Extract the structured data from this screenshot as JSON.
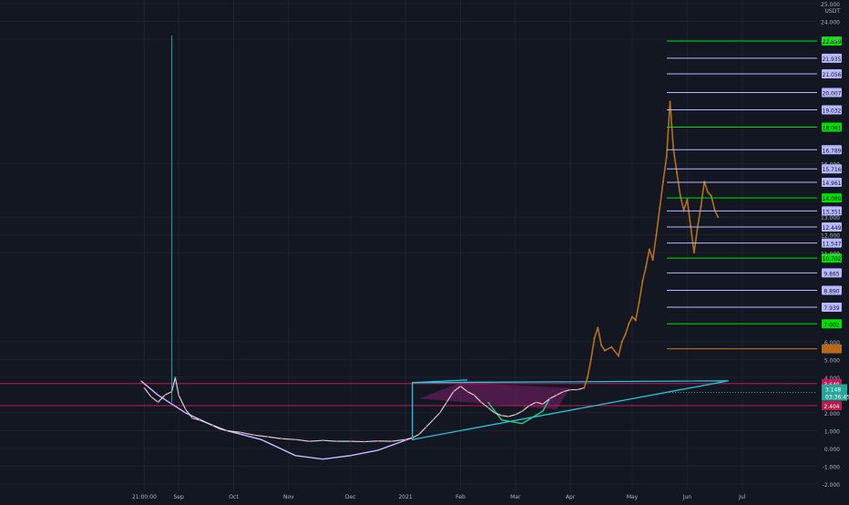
{
  "chart_data": {
    "type": "line",
    "title": "",
    "xlabel": "",
    "ylabel": "",
    "currency_label": "USDT",
    "ylim": [
      -2.0,
      25.0
    ],
    "colors": {
      "background": "#131722",
      "grid": "#1e222d",
      "axis_text": "#b2b5be",
      "price_history": "#e0e3eb",
      "projection": "#c77a1d",
      "cup_curve": "#c9b7ff",
      "triangle": "#26c6da",
      "fib_line": "#b7b8ff",
      "fib_green": "#00e000",
      "pink_line": "#c2185b",
      "pattern_fill": "#7b1f6a",
      "current_price_tag": "#26a69a",
      "dark_red_tag": "#b71c4a",
      "orange_tag": "#b86a1b"
    },
    "y_ticks": [
      {
        "v": 25.0,
        "label": "25.000"
      },
      {
        "v": 24.0,
        "label": "24.000"
      },
      {
        "v": 23.0,
        "label": "23.000"
      },
      {
        "v": 16.0,
        "label": "16.000"
      },
      {
        "v": 13.0,
        "label": "13.000"
      },
      {
        "v": 12.0,
        "label": "12.000"
      },
      {
        "v": 11.0,
        "label": "11.000"
      },
      {
        "v": 6.0,
        "label": "6.000"
      },
      {
        "v": 5.0,
        "label": "5.000"
      },
      {
        "v": 4.0,
        "label": "4.000"
      },
      {
        "v": 2.0,
        "label": "2.000"
      },
      {
        "v": 1.0,
        "label": "1.000"
      },
      {
        "v": 0.0,
        "label": "0.000"
      },
      {
        "v": -1.0,
        "label": "-1.000"
      },
      {
        "v": -2.0,
        "label": "-2.000"
      }
    ],
    "x_ticks": [
      {
        "x": 2020.62,
        "label": "21:00:00"
      },
      {
        "x": 2020.67,
        "label": "Sep"
      },
      {
        "x": 2020.75,
        "label": "Oct"
      },
      {
        "x": 2020.83,
        "label": "Nov"
      },
      {
        "x": 2020.92,
        "label": "Dec"
      },
      {
        "x": 2021.0,
        "label": "2021"
      },
      {
        "x": 2021.08,
        "label": "Feb"
      },
      {
        "x": 2021.16,
        "label": "Mar"
      },
      {
        "x": 2021.24,
        "label": "Apr"
      },
      {
        "x": 2021.33,
        "label": "May"
      },
      {
        "x": 2021.41,
        "label": "Jun"
      },
      {
        "x": 2021.49,
        "label": "Jul"
      }
    ],
    "x_range": [
      2020.41,
      2021.55
    ],
    "levels": [
      {
        "v": 22.899,
        "label": "22.899",
        "kind": "green"
      },
      {
        "v": 21.935,
        "label": "21.935",
        "kind": "fib"
      },
      {
        "v": 21.056,
        "label": "21.056",
        "kind": "fib"
      },
      {
        "v": 20.007,
        "label": "20.007",
        "kind": "fib"
      },
      {
        "v": 19.032,
        "label": "19.032",
        "kind": "fib"
      },
      {
        "v": 18.061,
        "label": "18.061",
        "kind": "green"
      },
      {
        "v": 16.789,
        "label": "16.789",
        "kind": "fib"
      },
      {
        "v": 15.716,
        "label": "15.716",
        "kind": "fib"
      },
      {
        "v": 14.961,
        "label": "14.961",
        "kind": "fib"
      },
      {
        "v": 14.08,
        "label": "14.080",
        "kind": "green"
      },
      {
        "v": 13.351,
        "label": "13.351",
        "kind": "fib"
      },
      {
        "v": 12.449,
        "label": "12.449",
        "kind": "fib"
      },
      {
        "v": 11.547,
        "label": "11.547",
        "kind": "fib"
      },
      {
        "v": 10.702,
        "label": "10.702",
        "kind": "green"
      },
      {
        "v": 9.865,
        "label": "9.865",
        "kind": "fib"
      },
      {
        "v": 8.89,
        "label": "8.890",
        "kind": "fib"
      },
      {
        "v": 7.939,
        "label": "7.939",
        "kind": "fib"
      },
      {
        "v": 7.002,
        "label": "7.002",
        "kind": "green"
      },
      {
        "v": 5.6,
        "label": "",
        "kind": "orange"
      }
    ],
    "pink_levels": [
      3.648,
      2.404
    ],
    "tags": {
      "upper_pink": "3.648",
      "lower_red": "2.404",
      "current_price": "3.148",
      "countdown": "03:36:45"
    },
    "series": [
      {
        "kind": "history",
        "points": [
          [
            2020.62,
            3.4
          ],
          [
            2020.63,
            2.9
          ],
          [
            2020.64,
            2.6
          ],
          [
            2020.65,
            3.0
          ],
          [
            2020.66,
            3.2
          ],
          [
            2020.665,
            4.0
          ],
          [
            2020.67,
            3.0
          ],
          [
            2020.68,
            2.2
          ],
          [
            2020.69,
            1.7
          ],
          [
            2020.7,
            1.6
          ],
          [
            2020.72,
            1.3
          ],
          [
            2020.74,
            1.0
          ],
          [
            2020.76,
            0.9
          ],
          [
            2020.78,
            0.75
          ],
          [
            2020.8,
            0.65
          ],
          [
            2020.82,
            0.55
          ],
          [
            2020.84,
            0.5
          ],
          [
            2020.86,
            0.4
          ],
          [
            2020.88,
            0.45
          ],
          [
            2020.9,
            0.4
          ],
          [
            2020.92,
            0.4
          ],
          [
            2020.94,
            0.38
          ],
          [
            2020.96,
            0.42
          ],
          [
            2020.98,
            0.4
          ],
          [
            2021.0,
            0.5
          ],
          [
            2021.01,
            0.6
          ],
          [
            2021.02,
            0.8
          ],
          [
            2021.03,
            1.2
          ],
          [
            2021.04,
            1.6
          ],
          [
            2021.05,
            2.0
          ],
          [
            2021.06,
            2.6
          ],
          [
            2021.07,
            3.2
          ],
          [
            2021.08,
            3.5
          ],
          [
            2021.09,
            3.2
          ],
          [
            2021.1,
            3.0
          ],
          [
            2021.11,
            2.6
          ],
          [
            2021.12,
            2.3
          ],
          [
            2021.13,
            2.0
          ],
          [
            2021.14,
            1.85
          ],
          [
            2021.15,
            1.8
          ],
          [
            2021.16,
            1.9
          ],
          [
            2021.17,
            2.1
          ],
          [
            2021.18,
            2.4
          ],
          [
            2021.19,
            2.6
          ],
          [
            2021.2,
            2.5
          ],
          [
            2021.21,
            2.8
          ],
          [
            2021.22,
            3.0
          ],
          [
            2021.23,
            3.2
          ],
          [
            2021.24,
            3.3
          ],
          [
            2021.25,
            3.3
          ],
          [
            2021.26,
            3.4
          ]
        ]
      },
      {
        "kind": "projection",
        "points": [
          [
            2021.26,
            3.4
          ],
          [
            2021.265,
            4.0
          ],
          [
            2021.27,
            5.0
          ],
          [
            2021.275,
            6.2
          ],
          [
            2021.28,
            6.8
          ],
          [
            2021.285,
            5.8
          ],
          [
            2021.29,
            5.5
          ],
          [
            2021.3,
            5.7
          ],
          [
            2021.31,
            5.2
          ],
          [
            2021.315,
            6.0
          ],
          [
            2021.32,
            6.4
          ],
          [
            2021.325,
            7.0
          ],
          [
            2021.33,
            7.4
          ],
          [
            2021.335,
            7.2
          ],
          [
            2021.34,
            8.2
          ],
          [
            2021.345,
            9.4
          ],
          [
            2021.35,
            10.2
          ],
          [
            2021.355,
            11.2
          ],
          [
            2021.36,
            10.6
          ],
          [
            2021.365,
            12.0
          ],
          [
            2021.37,
            13.5
          ],
          [
            2021.375,
            15.0
          ],
          [
            2021.38,
            16.4
          ],
          [
            2021.385,
            19.5
          ],
          [
            2021.39,
            16.8
          ],
          [
            2021.395,
            15.5
          ],
          [
            2021.4,
            14.2
          ],
          [
            2021.405,
            13.4
          ],
          [
            2021.41,
            14.0
          ],
          [
            2021.415,
            12.5
          ],
          [
            2021.42,
            11.0
          ],
          [
            2021.425,
            12.4
          ],
          [
            2021.43,
            13.6
          ],
          [
            2021.435,
            15.0
          ],
          [
            2021.44,
            14.4
          ],
          [
            2021.445,
            14.2
          ],
          [
            2021.45,
            13.4
          ],
          [
            2021.455,
            13.0
          ]
        ]
      }
    ],
    "spike": [
      [
        2020.66,
        2.6
      ],
      [
        2020.66,
        23.2
      ]
    ],
    "cup_curve": [
      [
        2020.615,
        3.8
      ],
      [
        2020.64,
        3.0
      ],
      [
        2020.68,
        2.0
      ],
      [
        2020.73,
        1.1
      ],
      [
        2020.79,
        0.5
      ],
      [
        2020.84,
        -0.4
      ],
      [
        2020.88,
        -0.6
      ],
      [
        2020.92,
        -0.4
      ],
      [
        2020.96,
        -0.1
      ],
      [
        2021.01,
        0.6
      ]
    ],
    "triangle": [
      [
        2021.01,
        3.7
      ],
      [
        2021.01,
        0.5
      ],
      [
        2021.47,
        3.8
      ]
    ],
    "inner_triangle": [
      [
        2021.02,
        2.8
      ],
      [
        2021.08,
        3.7
      ],
      [
        2021.24,
        3.4
      ],
      [
        2021.22,
        2.2
      ]
    ],
    "cup_small": [
      [
        2021.12,
        2.6
      ],
      [
        2021.14,
        1.6
      ],
      [
        2021.17,
        1.4
      ],
      [
        2021.2,
        2.1
      ],
      [
        2021.21,
        2.8
      ]
    ]
  }
}
